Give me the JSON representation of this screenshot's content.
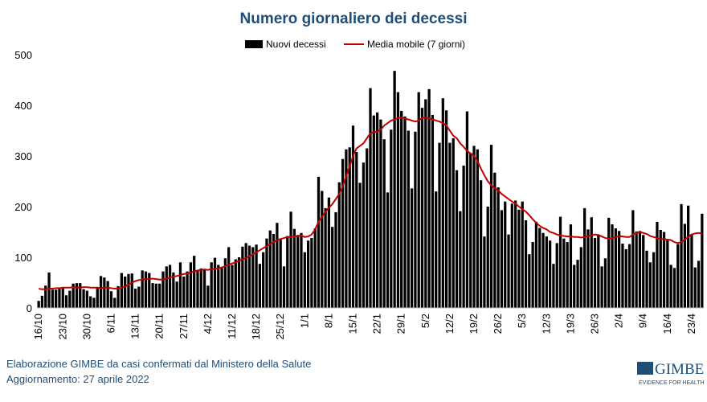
{
  "chart_data": {
    "type": "bar_line",
    "title": "Numero giornaliero dei decessi",
    "categories": [
      "16/10",
      null,
      null,
      null,
      null,
      null,
      null,
      "23/10",
      null,
      null,
      null,
      null,
      null,
      null,
      "30/10",
      null,
      null,
      null,
      null,
      null,
      null,
      "6/11",
      null,
      null,
      null,
      null,
      null,
      null,
      "13/11",
      null,
      null,
      null,
      null,
      null,
      null,
      "20/11",
      null,
      null,
      null,
      null,
      null,
      null,
      "27/11",
      null,
      null,
      null,
      null,
      null,
      null,
      "4/12",
      null,
      null,
      null,
      null,
      null,
      null,
      "11/12",
      null,
      null,
      null,
      null,
      null,
      null,
      "18/12",
      null,
      null,
      null,
      null,
      null,
      null,
      "25/12",
      null,
      null,
      null,
      null,
      null,
      null,
      "1/1",
      null,
      null,
      null,
      null,
      null,
      null,
      "8/1",
      null,
      null,
      null,
      null,
      null,
      null,
      "15/1",
      null,
      null,
      null,
      null,
      null,
      null,
      "22/1",
      null,
      null,
      null,
      null,
      null,
      null,
      "29/1",
      null,
      null,
      null,
      null,
      null,
      null,
      "5/2",
      null,
      null,
      null,
      null,
      null,
      null,
      "12/2",
      null,
      null,
      null,
      null,
      null,
      null,
      "19/2",
      null,
      null,
      null,
      null,
      null,
      null,
      "26/2",
      null,
      null,
      null,
      null,
      null,
      null,
      "5/3",
      null,
      null,
      null,
      null,
      null,
      null,
      "12/3",
      null,
      null,
      null,
      null,
      null,
      null,
      "19/3",
      null,
      null,
      null,
      null,
      null,
      null,
      "26/3",
      null,
      null,
      null,
      null,
      null,
      null,
      "2/4",
      null,
      null,
      null,
      null,
      null,
      null,
      "9/4",
      null,
      null,
      null,
      null,
      null,
      null,
      "16/4",
      null,
      null,
      null,
      null,
      null,
      null,
      "23/4",
      null,
      null,
      null
    ],
    "series": [
      {
        "name": "Nuovi decessi",
        "kind": "bar",
        "color": "#000000",
        "values": [
          14,
          24,
          44,
          70,
          36,
          36,
          38,
          40,
          25,
          34,
          48,
          49,
          49,
          37,
          34,
          23,
          20,
          40,
          63,
          60,
          53,
          33,
          20,
          43,
          69,
          62,
          67,
          68,
          38,
          42,
          74,
          72,
          69,
          49,
          48,
          48,
          72,
          82,
          85,
          70,
          52,
          90,
          62,
          72,
          90,
          103,
          74,
          78,
          77,
          44,
          90,
          99,
          85,
          79,
          98,
          120,
          85,
          96,
          100,
          121,
          128,
          123,
          120,
          125,
          87,
          110,
          137,
          153,
          146,
          168,
          137,
          82,
          142,
          190,
          156,
          144,
          148,
          110,
          133,
          138,
          157,
          259,
          231,
          197,
          218,
          160,
          189,
          248,
          294,
          313,
          317,
          360,
          308,
          247,
          287,
          315,
          434,
          380,
          386,
          372,
          333,
          228,
          352,
          468,
          426,
          389,
          378,
          350,
          236,
          348,
          426,
          395,
          412,
          432,
          381,
          230,
          326,
          414,
          390,
          326,
          335,
          272,
          191,
          281,
          388,
          306,
          320,
          313,
          252,
          141,
          200,
          322,
          267,
          238,
          193,
          210,
          145,
          206,
          212,
          194,
          210,
          173,
          106,
          130,
          170,
          158,
          148,
          141,
          133,
          87,
          128,
          180,
          137,
          130,
          165,
          85,
          95,
          120,
          197,
          155,
          179,
          138,
          145,
          82,
          98,
          178,
          165,
          157,
          152,
          127,
          116,
          126,
          193,
          151,
          152,
          144,
          113,
          90,
          110,
          170,
          154,
          150,
          134,
          85,
          79,
          126,
          205,
          166,
          202,
          146,
          80,
          93,
          186
        ]
      },
      {
        "name": "Media mobile (7 giorni)",
        "kind": "line",
        "color": "#c00000",
        "values": [
          38,
          37,
          37,
          38,
          38,
          39,
          39,
          40,
          40,
          40,
          41,
          40,
          40,
          41,
          41,
          40,
          40,
          40,
          39,
          40,
          40,
          39,
          38,
          38,
          40,
          42,
          46,
          50,
          53,
          55,
          56,
          57,
          57,
          58,
          57,
          56,
          56,
          58,
          60,
          62,
          63,
          65,
          67,
          68,
          70,
          72,
          74,
          75,
          76,
          75,
          77,
          77,
          78,
          80,
          82,
          85,
          88,
          90,
          93,
          96,
          98,
          102,
          106,
          110,
          114,
          118,
          122,
          126,
          130,
          134,
          136,
          138,
          140,
          140,
          141,
          142,
          143,
          140,
          141,
          145,
          155,
          170,
          180,
          190,
          198,
          205,
          215,
          225,
          240,
          260,
          280,
          300,
          315,
          320,
          325,
          335,
          345,
          347,
          348,
          352,
          360,
          365,
          370,
          372,
          375,
          376,
          374,
          372,
          370,
          368,
          370,
          375,
          376,
          374,
          372,
          370,
          368,
          365,
          360,
          350,
          340,
          335,
          325,
          318,
          310,
          305,
          300,
          290,
          275,
          262,
          250,
          242,
          236,
          232,
          225,
          220,
          215,
          210,
          206,
          200,
          195,
          190,
          183,
          175,
          168,
          162,
          158,
          155,
          150,
          148,
          145,
          143,
          142,
          141,
          141,
          140,
          140,
          139,
          140,
          142,
          143,
          145,
          144,
          141,
          138,
          137,
          138,
          140,
          142,
          141,
          140,
          140,
          145,
          148,
          150,
          148,
          146,
          142,
          140,
          138,
          136,
          136,
          135,
          134,
          130,
          128,
          130,
          135,
          140,
          145,
          147,
          148,
          147
        ]
      }
    ],
    "ylim": [
      0,
      500
    ],
    "yticks": [
      0,
      100,
      200,
      300,
      400,
      500
    ],
    "grid": false,
    "legend": "top",
    "footer": [
      "Elaborazione GIMBE da casi confermati dal Ministero della Salute",
      "Aggiornamento: 27 aprile 2022"
    ],
    "logo": {
      "name": "GIMBE",
      "tagline": "EVIDENCE FOR HEALTH"
    }
  }
}
